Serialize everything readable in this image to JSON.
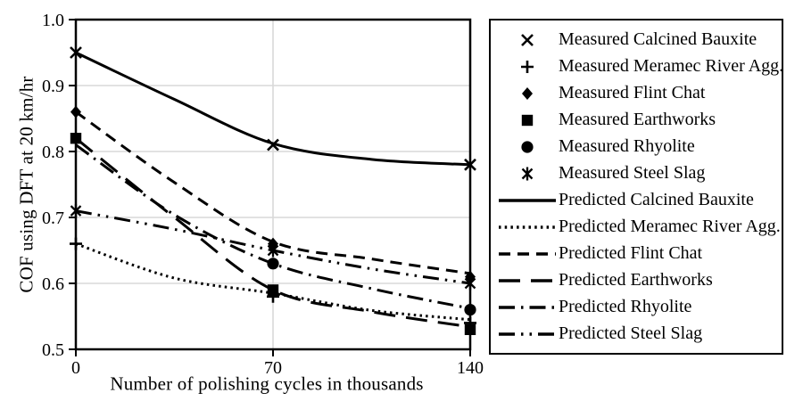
{
  "chart_data": {
    "type": "line",
    "title": "",
    "xlabel": "Number of polishing cycles in thousands",
    "ylabel": "COF using DFT at 20 km/hr",
    "xlim": [
      0,
      140
    ],
    "ylim": [
      0.5,
      1.0
    ],
    "x_ticks": [
      {
        "label": "0",
        "value": 0
      },
      {
        "label": "70",
        "value": 70
      },
      {
        "label": "140",
        "value": 140
      }
    ],
    "y_ticks": [
      {
        "label": "1.0",
        "value": 1.0
      },
      {
        "label": "0.9",
        "value": 0.9
      },
      {
        "label": "0.8",
        "value": 0.8
      },
      {
        "label": "0.7",
        "value": 0.7
      },
      {
        "label": "0.6",
        "value": 0.6
      },
      {
        "label": "0.5",
        "value": 0.5
      }
    ],
    "grid": {
      "horizontal_values": [
        0.9,
        0.8,
        0.7,
        0.6
      ],
      "vertical_values": [
        70
      ],
      "color": "#d9d9d9"
    },
    "series_color": "#000000",
    "legend_position": "right",
    "measured": [
      {
        "label": "Measured Calcined Bauxite",
        "marker": "x",
        "points": [
          [
            0,
            0.95
          ],
          [
            70,
            0.81
          ],
          [
            140,
            0.78
          ]
        ]
      },
      {
        "label": "Measured Meramec River Agg.",
        "marker": "plus",
        "points": [
          [
            0,
            0.66
          ],
          [
            70,
            0.58
          ],
          [
            140,
            0.54
          ]
        ]
      },
      {
        "label": "Measured Flint Chat",
        "marker": "diamond",
        "points": [
          [
            0,
            0.86
          ],
          [
            70,
            0.66
          ],
          [
            140,
            0.61
          ]
        ]
      },
      {
        "label": "Measured Earthworks",
        "marker": "square",
        "points": [
          [
            0,
            0.82
          ],
          [
            70,
            0.59
          ],
          [
            140,
            0.53
          ]
        ]
      },
      {
        "label": "Measured Rhyolite",
        "marker": "circle",
        "points": [
          [
            70,
            0.63
          ],
          [
            140,
            0.56
          ]
        ]
      },
      {
        "label": "Measured Steel Slag",
        "marker": "asterisk",
        "points": [
          [
            0,
            0.71
          ],
          [
            70,
            0.65
          ],
          [
            140,
            0.6
          ]
        ]
      }
    ],
    "predicted": [
      {
        "label": "Predicted Calcined Bauxite",
        "dash": "solid",
        "points": [
          [
            0,
            0.95
          ],
          [
            35,
            0.879
          ],
          [
            70,
            0.812
          ],
          [
            105,
            0.788
          ],
          [
            140,
            0.78
          ]
        ]
      },
      {
        "label": "Predicted Meramec River Agg.",
        "dash": "dotted",
        "points": [
          [
            0,
            0.66
          ],
          [
            35,
            0.608
          ],
          [
            70,
            0.585
          ],
          [
            105,
            0.559
          ],
          [
            140,
            0.545
          ]
        ]
      },
      {
        "label": "Predicted Flint Chat",
        "dash": "dashed",
        "points": [
          [
            0,
            0.86
          ],
          [
            35,
            0.753
          ],
          [
            70,
            0.663
          ],
          [
            105,
            0.637
          ],
          [
            140,
            0.615
          ]
        ]
      },
      {
        "label": "Predicted Earthworks",
        "dash": "long-dash",
        "points": [
          [
            0,
            0.82
          ],
          [
            35,
            0.7
          ],
          [
            70,
            0.59
          ],
          [
            105,
            0.557
          ],
          [
            140,
            0.534
          ]
        ]
      },
      {
        "label": "Predicted Rhyolite",
        "dash": "dash-dot",
        "points": [
          [
            0,
            0.81
          ],
          [
            35,
            0.704
          ],
          [
            70,
            0.63
          ],
          [
            105,
            0.592
          ],
          [
            140,
            0.562
          ]
        ]
      },
      {
        "label": "Predicted Steel Slag",
        "dash": "dash-dot-dot",
        "points": [
          [
            0,
            0.71
          ],
          [
            35,
            0.682
          ],
          [
            70,
            0.65
          ],
          [
            105,
            0.622
          ],
          [
            140,
            0.6
          ]
        ]
      }
    ]
  }
}
